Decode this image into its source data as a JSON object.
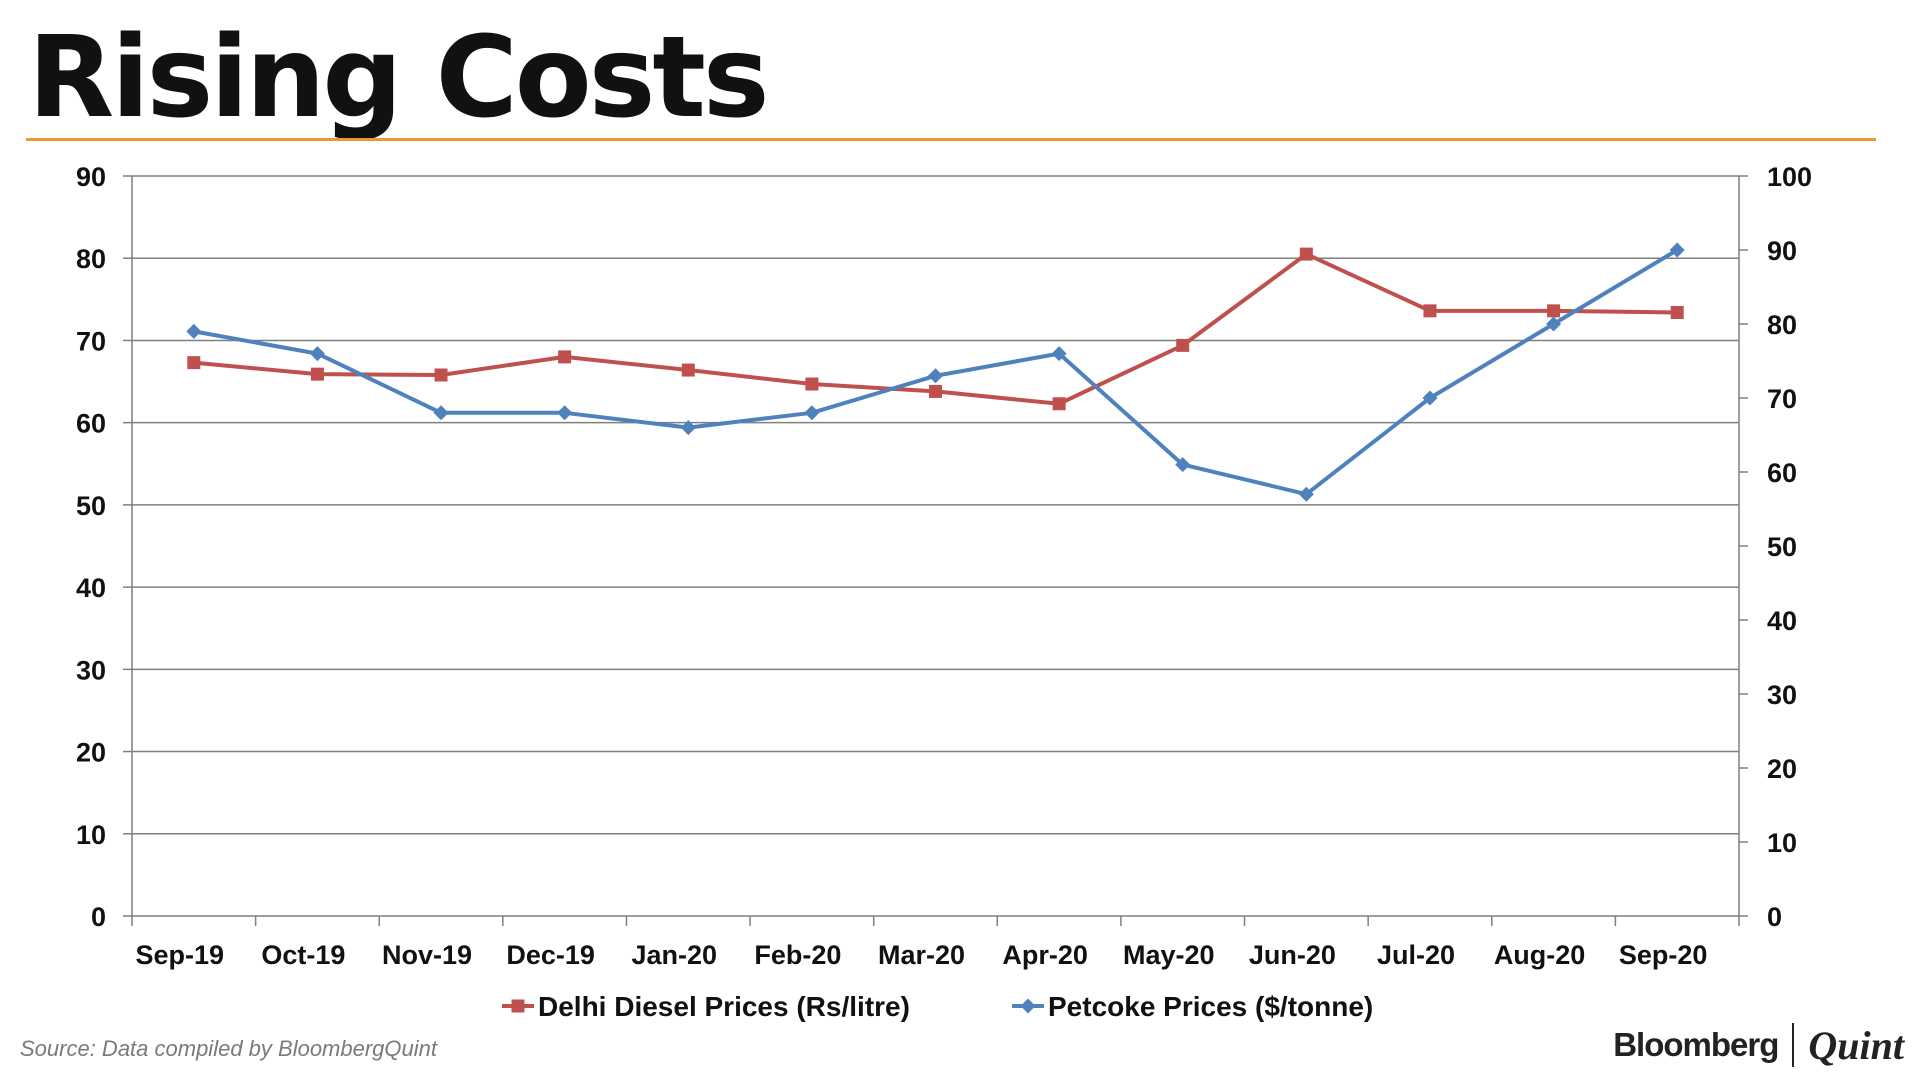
{
  "title": "Rising Costs",
  "source": "Source: Data compiled by BloombergQuint",
  "brand": {
    "left": "Bloomberg",
    "right": "Quint"
  },
  "colors": {
    "diesel": "#c0504d",
    "petcoke": "#4f81bd",
    "title_rule": "#e59b2e",
    "grid": "#7f7f7f"
  },
  "chart_data": {
    "type": "line",
    "title": "Rising Costs",
    "categories": [
      "Sep-19",
      "Oct-19",
      "Nov-19",
      "Dec-19",
      "Jan-20",
      "Feb-20",
      "Mar-20",
      "Apr-20",
      "May-20",
      "Jun-20",
      "Jul-20",
      "Aug-20",
      "Sep-20"
    ],
    "left_axis": {
      "min": 0,
      "max": 90,
      "step": 10,
      "ticks": [
        "0",
        "10",
        "20",
        "30",
        "40",
        "50",
        "60",
        "70",
        "80",
        "90"
      ]
    },
    "right_axis": {
      "min": 0,
      "max": 100,
      "step": 10,
      "ticks": [
        "0",
        "10",
        "20",
        "30",
        "40",
        "50",
        "60",
        "70",
        "80",
        "90",
        "100"
      ]
    },
    "grid": true,
    "legend_position": "bottom",
    "series": [
      {
        "name": "Delhi Diesel Prices (Rs/litre)",
        "axis": "left",
        "marker": "square",
        "values": [
          67.3,
          65.9,
          65.8,
          68.0,
          66.4,
          64.7,
          63.8,
          62.3,
          69.4,
          80.5,
          73.6,
          73.6,
          73.4
        ]
      },
      {
        "name": "Petcoke Prices ($/tonne)",
        "axis": "right",
        "marker": "diamond",
        "values": [
          79,
          76,
          68,
          68,
          66,
          68,
          73,
          76,
          61,
          57,
          70,
          80,
          90
        ]
      }
    ]
  }
}
